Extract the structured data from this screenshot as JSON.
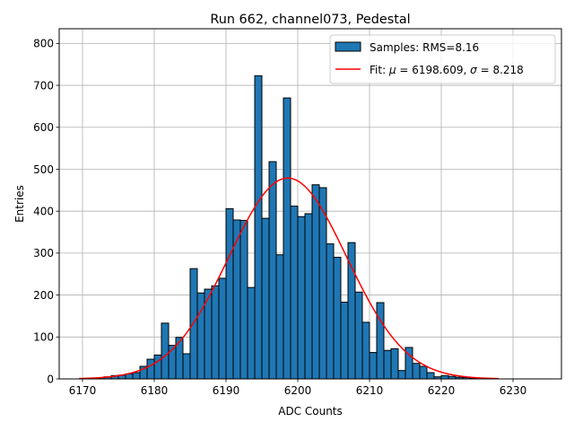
{
  "chart_data": {
    "type": "bar",
    "title": "Run 662, channel073, Pedestal",
    "xlabel": "ADC Counts",
    "ylabel": "Entries",
    "xlim": [
      6166.75,
      6236.75
    ],
    "ylim": [
      0,
      835
    ],
    "x_ticks": [
      6170,
      6180,
      6190,
      6200,
      6210,
      6220,
      6230
    ],
    "y_ticks": [
      0,
      100,
      200,
      300,
      400,
      500,
      600,
      700,
      800
    ],
    "grid": true,
    "bin_width": 1,
    "bin_start": 6169,
    "counts": [
      0,
      1,
      2,
      3,
      5,
      8,
      9,
      12,
      15,
      30,
      47,
      57,
      133,
      80,
      99,
      60,
      263,
      205,
      214,
      222,
      240,
      406,
      379,
      378,
      218,
      723,
      383,
      518,
      296,
      670,
      412,
      387,
      394,
      463,
      456,
      322,
      290,
      183,
      325,
      207,
      135,
      63,
      182,
      68,
      72,
      20,
      75,
      37,
      30,
      15,
      5,
      8,
      6,
      4,
      3,
      2,
      1,
      1,
      0
    ],
    "fit": {
      "mu": 6198.609,
      "sigma": 8.218,
      "amplitude": 479,
      "x_range": [
        6169.5,
        6228
      ],
      "color": "#ff0000"
    },
    "bar_color": "#1f77b4",
    "legend": {
      "position": "top-right",
      "entries": [
        {
          "label": "Samples: RMS=8.16",
          "kind": "patch"
        },
        {
          "label_prefix": "Fit: ",
          "mu_symbol": "μ",
          "mu_text": " = 6198.609, ",
          "sigma_symbol": "σ",
          "sigma_text": " = 8.218",
          "kind": "line"
        }
      ]
    }
  }
}
